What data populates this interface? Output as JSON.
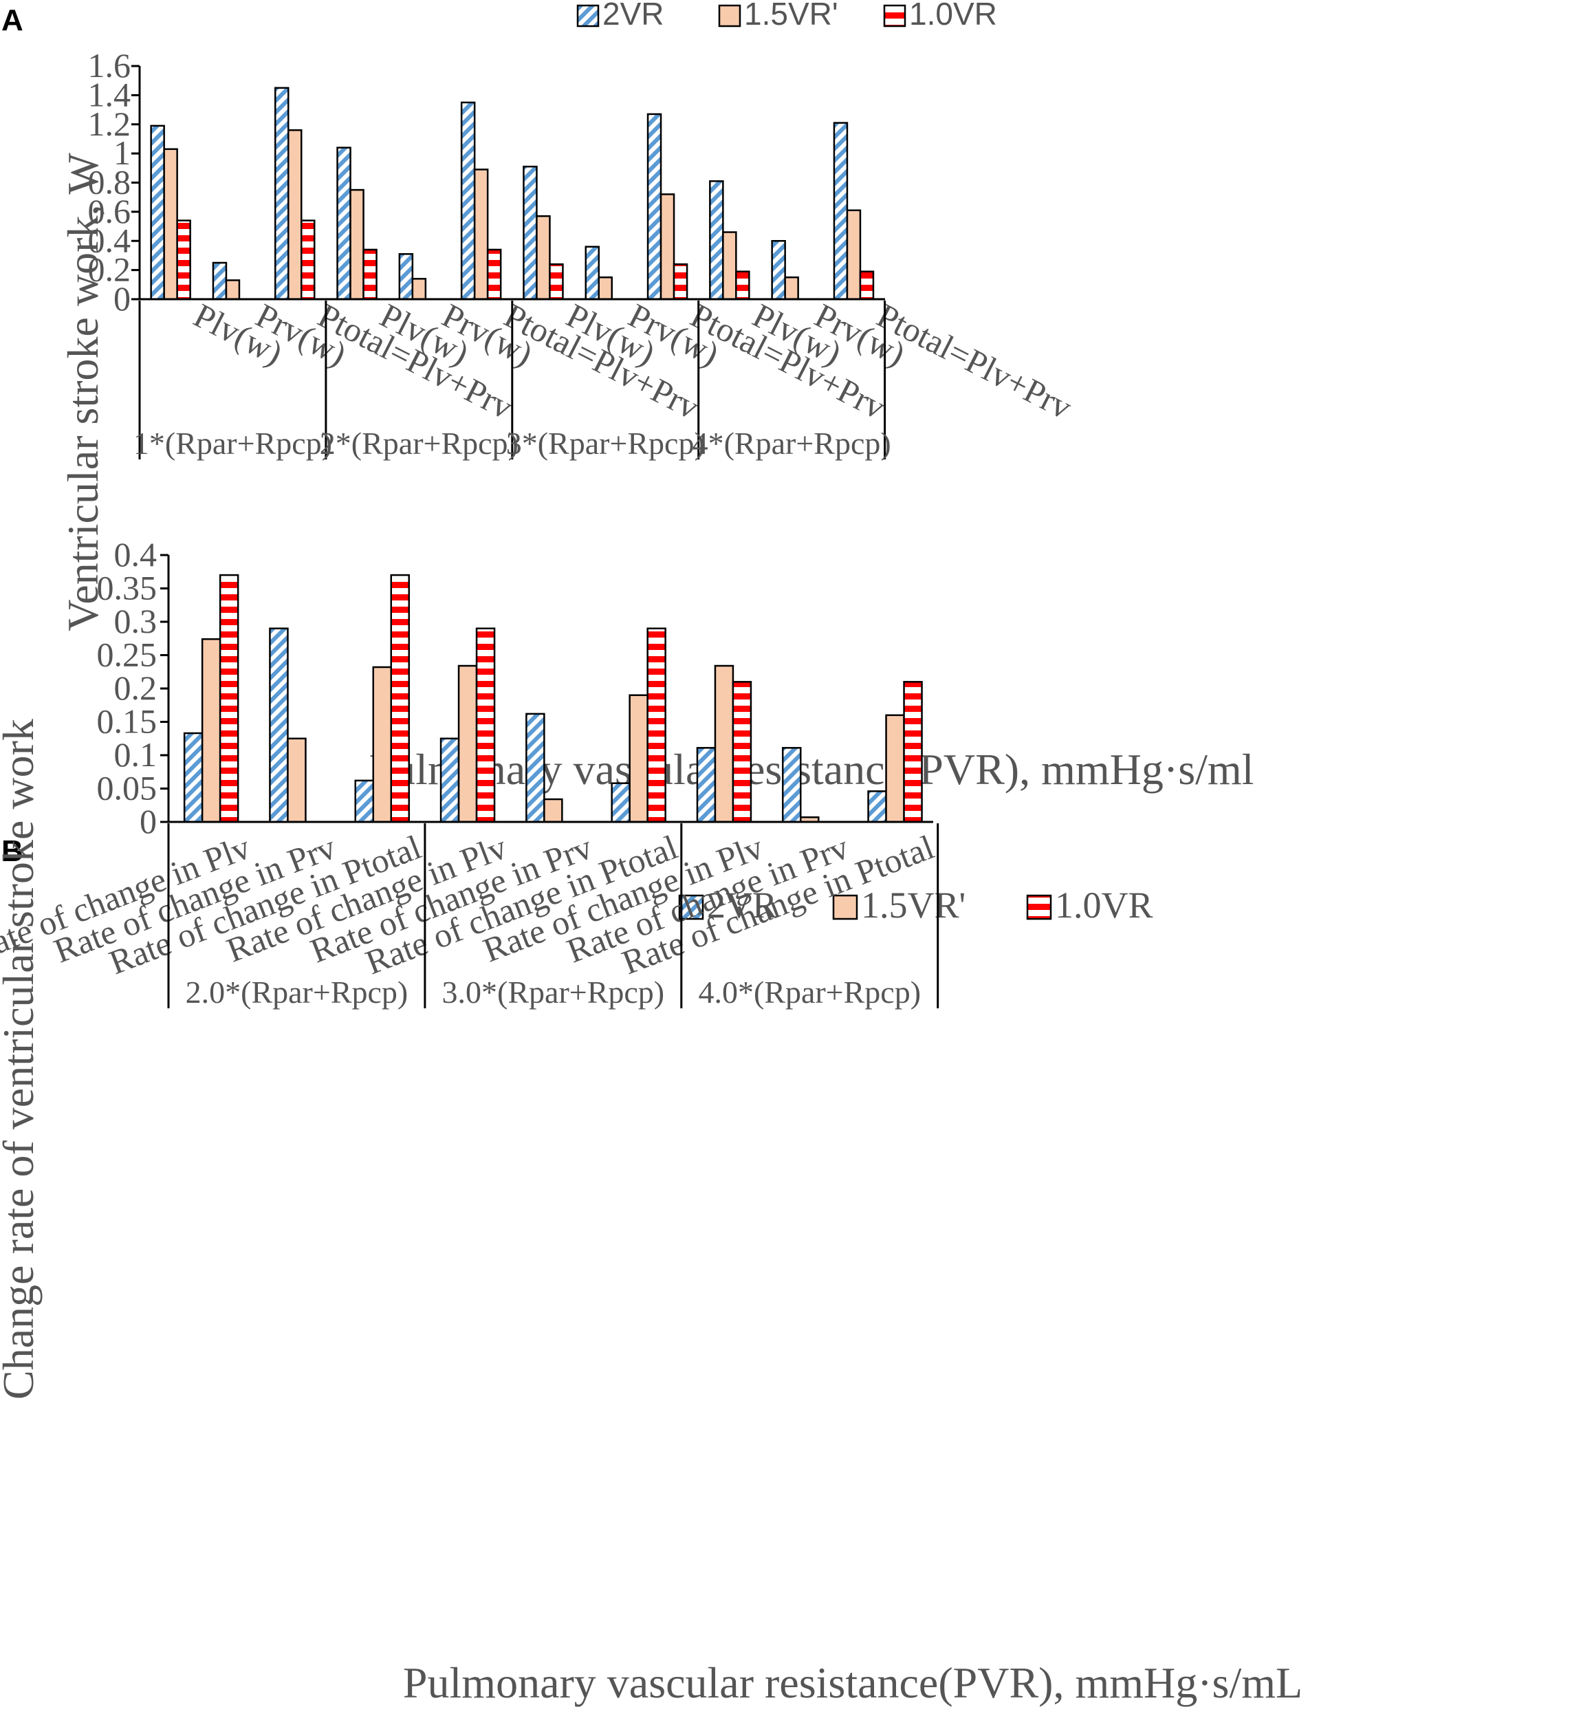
{
  "series_styles": [
    {
      "name": "2VR",
      "base": "#ffffff",
      "stripe": "#5b9bd5",
      "pattern": "diag",
      "border": "#000000"
    },
    {
      "name": "1.5VR'",
      "base": "#f8cbad",
      "stripe": "#f8cbad",
      "pattern": "solid",
      "border": "#000000"
    },
    {
      "name": "1.0VR",
      "base": "#ffffff",
      "stripe": "#ff0000",
      "pattern": "horiz",
      "border": "#000000"
    }
  ],
  "chart_data": [
    {
      "panel": "A",
      "type": "bar",
      "ylabel": "Ventricular stroke work, W",
      "xlabel": "Pulmonary vascular resistance(PVR),  mmHg·s/ml",
      "ylim": [
        0,
        1.6
      ],
      "yticks": [
        "0",
        "0.2",
        "0.4",
        "0.6",
        "0.8",
        "1",
        "1.2",
        "1.4",
        "1.6"
      ],
      "legend_position": "top",
      "groups": [
        "1*(Rpar+Rpcp)",
        "2*(Rpar+Rpcp)",
        "3*(Rpar+Rpcp)",
        "4*(Rpar+Rpcp)"
      ],
      "categories": [
        "Plv(w)",
        "Prv(w)",
        "Ptotal=Plv+Prv",
        "Plv(w)",
        "Prv(w)",
        "Ptotal=Plv+Prv",
        "Plv(w)",
        "Prv(w)",
        "Ptotal=Plv+Prv",
        "Plv(w)",
        "Prv(w)",
        "Ptotal=Plv+Prv"
      ],
      "series": [
        {
          "name": "2VR",
          "values": [
            1.19,
            0.25,
            1.45,
            1.04,
            0.31,
            1.35,
            0.91,
            0.36,
            1.27,
            0.81,
            0.4,
            1.21
          ]
        },
        {
          "name": "1.5VR'",
          "values": [
            1.03,
            0.13,
            1.16,
            0.75,
            0.14,
            0.89,
            0.57,
            0.15,
            0.72,
            0.46,
            0.15,
            0.61
          ]
        },
        {
          "name": "1.0VR",
          "values": [
            0.54,
            0,
            0.54,
            0.34,
            0,
            0.34,
            0.24,
            0,
            0.24,
            0.19,
            0,
            0.19
          ]
        }
      ]
    },
    {
      "panel": "B",
      "type": "bar",
      "ylabel": "Change rate of ventricular stroke work",
      "xlabel": "Pulmonary vascular resistance(PVR),  mmHg·s/mL",
      "ylim": [
        0,
        0.4
      ],
      "yticks": [
        "0",
        "0.05",
        "0.1",
        "0.15",
        "0.2",
        "0.25",
        "0.3",
        "0.35",
        "0.4"
      ],
      "legend_position": "top-right",
      "groups": [
        "2.0*(Rpar+Rpcp)",
        "3.0*(Rpar+Rpcp)",
        "4.0*(Rpar+Rpcp)"
      ],
      "categories": [
        "Rate of change in Plv",
        "Rate of change in Prv",
        "Rate of change in Ptotal",
        "Rate of change in Plv",
        "Rate of change in Prv",
        "Rate of change in Ptotal",
        "Rate of change in Plv",
        "Rate of change in Prv",
        "Rate of change in Ptotal"
      ],
      "series": [
        {
          "name": "2VR",
          "values": [
            0.133,
            0.29,
            0.062,
            0.125,
            0.162,
            0.058,
            0.111,
            0.111,
            0.046
          ]
        },
        {
          "name": "1.5VR'",
          "values": [
            0.274,
            0.125,
            0.232,
            0.234,
            0.034,
            0.19,
            0.234,
            0.007,
            0.16
          ]
        },
        {
          "name": "1.0VR",
          "values": [
            0.37,
            0,
            0.37,
            0.29,
            0,
            0.29,
            0.21,
            0,
            0.21
          ]
        }
      ]
    }
  ]
}
